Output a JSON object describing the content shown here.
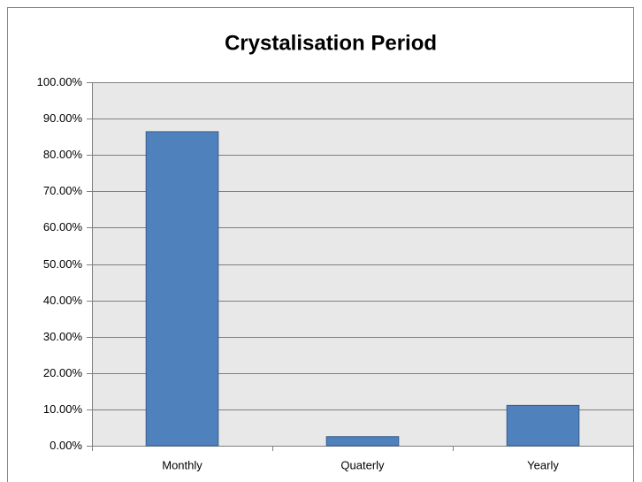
{
  "chart_data": {
    "type": "bar",
    "title": "Crystalisation Period",
    "categories": [
      "Monthly",
      "Quaterly",
      "Yearly"
    ],
    "values": [
      86.4,
      2.5,
      11.1
    ],
    "color": "#4f81bd",
    "ylim": [
      0,
      100
    ],
    "yticks": [
      {
        "value": 0,
        "label": "0.00%"
      },
      {
        "value": 10,
        "label": "10.00%"
      },
      {
        "value": 20,
        "label": "20.00%"
      },
      {
        "value": 30,
        "label": "30.00%"
      },
      {
        "value": 40,
        "label": "40.00%"
      },
      {
        "value": 50,
        "label": "50.00%"
      },
      {
        "value": 60,
        "label": "60.00%"
      },
      {
        "value": 70,
        "label": "70.00%"
      },
      {
        "value": 80,
        "label": "80.00%"
      },
      {
        "value": 90,
        "label": "90.00%"
      },
      {
        "value": 100,
        "label": "100.00%"
      }
    ],
    "grid": true
  }
}
